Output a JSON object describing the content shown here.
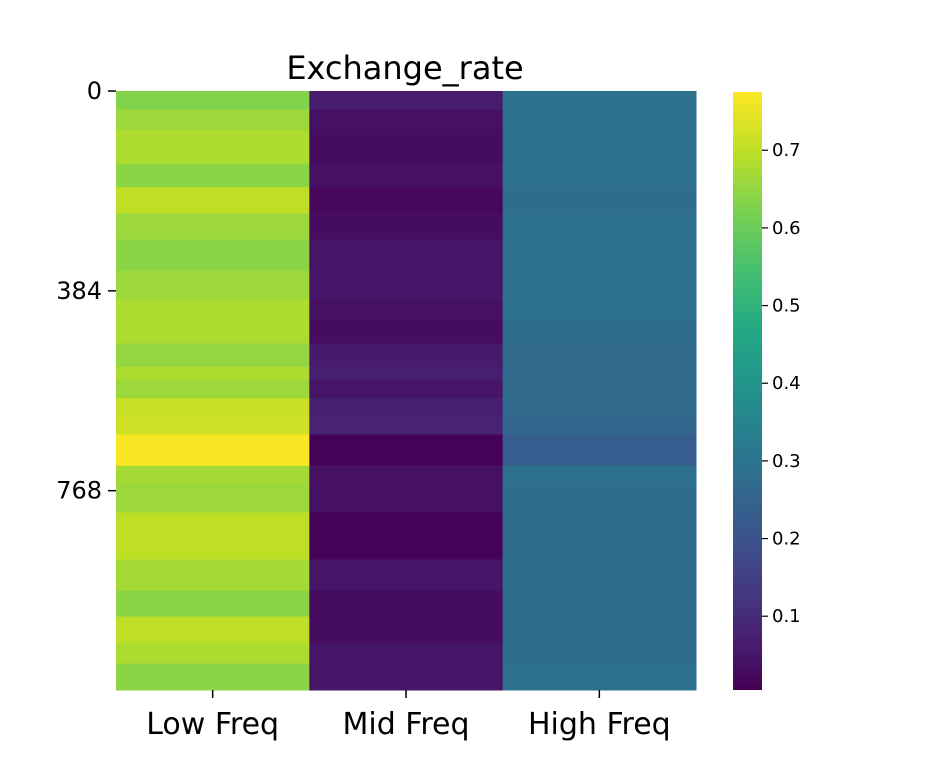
{
  "chart_data": {
    "type": "heatmap",
    "title": "Exchange_rate",
    "x_categories": [
      "Low Freq",
      "Mid Freq",
      "High Freq"
    ],
    "y_range": [
      0,
      1151
    ],
    "y_ticks": [
      {
        "value": 0,
        "label": "0"
      },
      {
        "value": 384,
        "label": "384"
      },
      {
        "value": 768,
        "label": "768"
      }
    ],
    "colormap": "viridis",
    "colorbar": {
      "range": [
        0.005,
        0.775
      ],
      "ticks": [
        {
          "value": 0.1,
          "label": "0.1"
        },
        {
          "value": 0.2,
          "label": "0.2"
        },
        {
          "value": 0.3,
          "label": "0.3"
        },
        {
          "value": 0.4,
          "label": "0.4"
        },
        {
          "value": 0.5,
          "label": "0.5"
        },
        {
          "value": 0.6,
          "label": "0.6"
        },
        {
          "value": 0.7,
          "label": "0.7"
        }
      ]
    },
    "rows": [
      {
        "start": 0,
        "end": 35,
        "values": [
          0.63,
          0.065,
          0.29
        ]
      },
      {
        "start": 35,
        "end": 75,
        "values": [
          0.66,
          0.04,
          0.29
        ]
      },
      {
        "start": 75,
        "end": 140,
        "values": [
          0.68,
          0.03,
          0.29
        ]
      },
      {
        "start": 140,
        "end": 185,
        "values": [
          0.64,
          0.04,
          0.29
        ]
      },
      {
        "start": 185,
        "end": 235,
        "values": [
          0.7,
          0.02,
          0.28
        ]
      },
      {
        "start": 235,
        "end": 285,
        "values": [
          0.66,
          0.03,
          0.29
        ]
      },
      {
        "start": 285,
        "end": 345,
        "values": [
          0.64,
          0.05,
          0.29
        ]
      },
      {
        "start": 345,
        "end": 400,
        "values": [
          0.66,
          0.05,
          0.29
        ]
      },
      {
        "start": 400,
        "end": 440,
        "values": [
          0.68,
          0.04,
          0.29
        ]
      },
      {
        "start": 440,
        "end": 485,
        "values": [
          0.68,
          0.03,
          0.28
        ]
      },
      {
        "start": 485,
        "end": 530,
        "values": [
          0.65,
          0.06,
          0.27
        ]
      },
      {
        "start": 530,
        "end": 555,
        "values": [
          0.68,
          0.07,
          0.27
        ]
      },
      {
        "start": 555,
        "end": 590,
        "values": [
          0.66,
          0.05,
          0.27
        ]
      },
      {
        "start": 590,
        "end": 625,
        "values": [
          0.71,
          0.07,
          0.27
        ]
      },
      {
        "start": 625,
        "end": 660,
        "values": [
          0.72,
          0.08,
          0.26
        ]
      },
      {
        "start": 660,
        "end": 720,
        "values": [
          0.77,
          0.01,
          0.23
        ]
      },
      {
        "start": 720,
        "end": 755,
        "values": [
          0.67,
          0.04,
          0.29
        ]
      },
      {
        "start": 755,
        "end": 810,
        "values": [
          0.66,
          0.04,
          0.28
        ]
      },
      {
        "start": 810,
        "end": 900,
        "values": [
          0.7,
          0.01,
          0.28
        ]
      },
      {
        "start": 900,
        "end": 960,
        "values": [
          0.67,
          0.05,
          0.28
        ]
      },
      {
        "start": 960,
        "end": 1010,
        "values": [
          0.64,
          0.03,
          0.28
        ]
      },
      {
        "start": 1010,
        "end": 1060,
        "values": [
          0.7,
          0.03,
          0.28
        ]
      },
      {
        "start": 1060,
        "end": 1100,
        "values": [
          0.68,
          0.05,
          0.28
        ]
      },
      {
        "start": 1100,
        "end": 1151,
        "values": [
          0.64,
          0.05,
          0.29
        ]
      }
    ]
  }
}
